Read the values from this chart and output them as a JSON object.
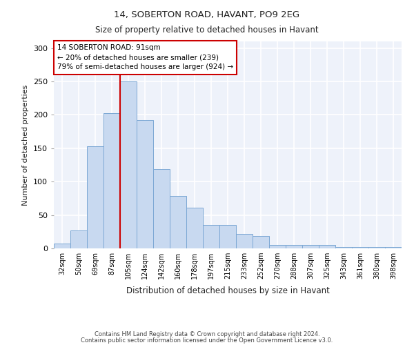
{
  "title1": "14, SOBERTON ROAD, HAVANT, PO9 2EG",
  "title2": "Size of property relative to detached houses in Havant",
  "xlabel": "Distribution of detached houses by size in Havant",
  "ylabel": "Number of detached properties",
  "bar_labels": [
    "32sqm",
    "50sqm",
    "69sqm",
    "87sqm",
    "105sqm",
    "124sqm",
    "142sqm",
    "160sqm",
    "178sqm",
    "197sqm",
    "215sqm",
    "233sqm",
    "252sqm",
    "270sqm",
    "288sqm",
    "307sqm",
    "325sqm",
    "343sqm",
    "361sqm",
    "380sqm",
    "398sqm"
  ],
  "bar_heights": [
    7,
    27,
    153,
    203,
    250,
    192,
    119,
    79,
    61,
    35,
    35,
    22,
    19,
    5,
    5,
    5,
    5,
    2,
    2,
    2,
    2
  ],
  "bar_color": "#c8d9f0",
  "bar_edge_color": "#7ba7d4",
  "vline_x": 3.5,
  "vline_color": "#cc0000",
  "annotation_title": "14 SOBERTON ROAD: 91sqm",
  "annotation_line1": "← 20% of detached houses are smaller (239)",
  "annotation_line2": "79% of semi-detached houses are larger (924) →",
  "background_color": "#eef2fa",
  "grid_color": "white",
  "ylim": [
    0,
    310
  ],
  "yticks": [
    0,
    50,
    100,
    150,
    200,
    250,
    300
  ],
  "footnote1": "Contains HM Land Registry data © Crown copyright and database right 2024.",
  "footnote2": "Contains public sector information licensed under the Open Government Licence v3.0."
}
